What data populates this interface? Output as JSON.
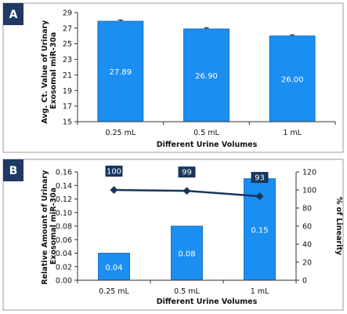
{
  "colors": {
    "bar": "#1b8ef2",
    "bar_stroke": "#0d5fb0",
    "line": "#17375e",
    "label_box": "#17375e",
    "panel_tab": "#1f3864",
    "frame": "#9a9a9a"
  },
  "panels": [
    "A",
    "B"
  ],
  "chart_data": [
    {
      "type": "bar",
      "panel": "A",
      "categories": [
        "0.25 mL",
        "0.5 mL",
        "1 mL"
      ],
      "values": [
        27.89,
        26.9,
        26.0
      ],
      "value_labels": [
        "27.89",
        "26.90",
        "26.00"
      ],
      "error_bars": true,
      "xlabel": "Different Urine Volumes",
      "ylabel": [
        "Avg. Ct. Value of Urinary",
        "Exosomal  miR-30a"
      ],
      "ylim": [
        15,
        29
      ],
      "yticks": [
        "15",
        "17",
        "19",
        "21",
        "23",
        "25",
        "27",
        "29"
      ],
      "grid": false
    },
    {
      "type": "bar",
      "panel": "B",
      "categories": [
        "0.25 mL",
        "0.5 mL",
        "1 mL"
      ],
      "values": [
        0.04,
        0.08,
        0.15
      ],
      "value_labels": [
        "0.04",
        "0.08",
        "0.15"
      ],
      "xlabel": "Different Urine Volumes",
      "ylabel": [
        "Relative Amount of Urinary",
        "Exosomal  miR-30a"
      ],
      "ylim": [
        0,
        0.16
      ],
      "yticks": [
        "0.00",
        "0.02",
        "0.04",
        "0.06",
        "0.08",
        "0.10",
        "0.12",
        "0.14",
        "0.16"
      ],
      "y2label": "% of Linearity",
      "y2lim": [
        0,
        120
      ],
      "y2ticks": [
        "0",
        "20",
        "40",
        "60",
        "80",
        "100",
        "120"
      ],
      "line_series": {
        "type": "line",
        "values": [
          100,
          99,
          93
        ],
        "value_labels": [
          "100",
          "99",
          "93"
        ]
      },
      "grid": false
    }
  ]
}
